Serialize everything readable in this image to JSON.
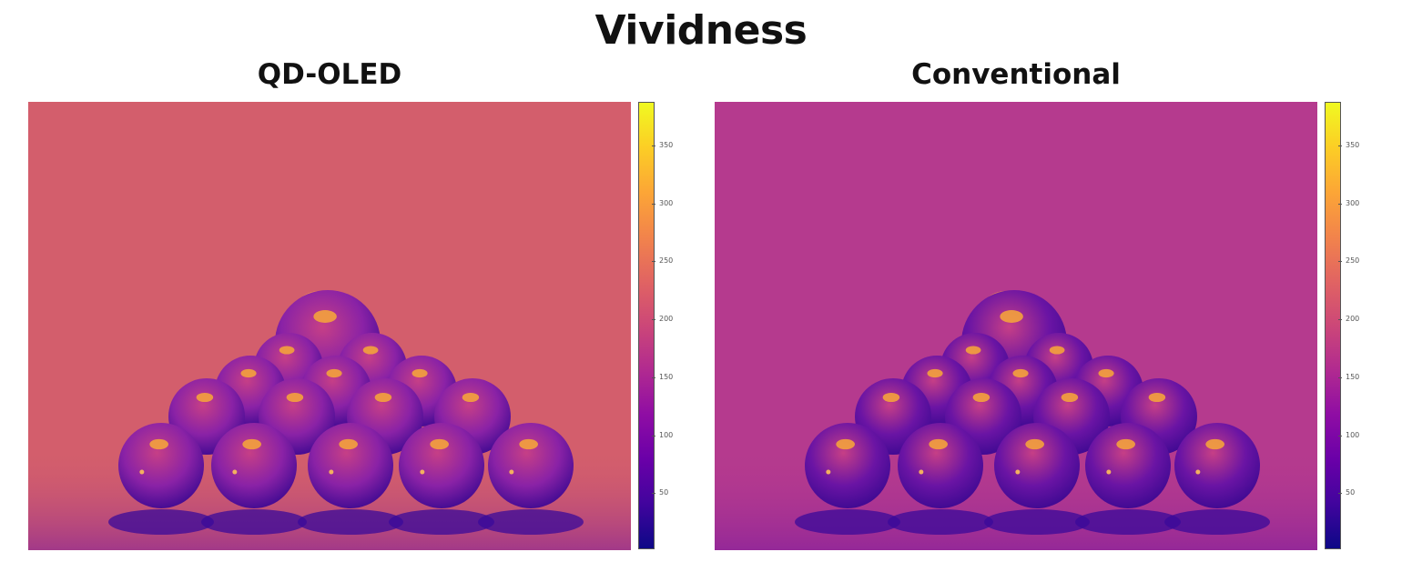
{
  "title": "Vividness",
  "panels": [
    {
      "label": "QD-OLED",
      "background_color": "#d35e6c",
      "ball_color": "#8a22a6",
      "top_ball_color": "#ef8a52"
    },
    {
      "label": "Conventional",
      "background_color": "#b53a8e",
      "ball_color": "#6a14a4",
      "top_ball_color": "#e57a5a"
    }
  ],
  "colorbar": {
    "colormap": "plasma",
    "ticks": [
      "350",
      "300",
      "250",
      "200",
      "150",
      "100",
      "50"
    ]
  }
}
